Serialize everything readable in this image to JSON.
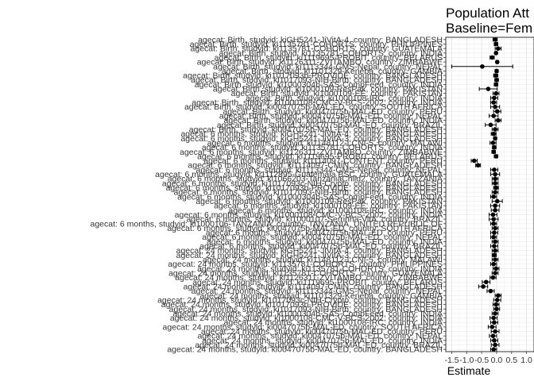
{
  "chart_data": {
    "type": "scatter",
    "title": "Population Att",
    "subtitle": "Baseline=Fem",
    "xlabel": "Estimate",
    "ylabel": "",
    "xlim": [
      -1.7,
      1.25
    ],
    "xticks": [
      -1.5,
      -1.0,
      -0.5,
      0.0,
      0.5,
      1.0
    ],
    "xtick_labels": [
      "-1.5",
      "-1.0",
      "-0.5",
      "0.0",
      "0.5",
      "1.0"
    ],
    "grid": true,
    "series": [
      {
        "points": [
          {
            "label": "agecat: Birth, studyid: kiGH5241-JiVitA-4, country: BANGLADESH",
            "est": -0.05,
            "lo": -0.12,
            "hi": 0.02
          },
          {
            "label": "agecat: Birth, studyid: ki1135781-COHORTS, country: PHILIPPINES",
            "est": -0.02,
            "lo": -0.08,
            "hi": 0.04
          },
          {
            "label": "agecat: Birth, studyid: ki1135781-COHORTS, country: GUATEMALA",
            "est": 0.05,
            "lo": -0.05,
            "hi": 0.15
          },
          {
            "label": "agecat: Birth, studyid: ki1135781-COHORTS, country: INDIA",
            "est": -0.02,
            "lo": -0.06,
            "hi": 0.02
          },
          {
            "label": "agecat: Birth, studyid: ki1119695-PROBIT, country: BELARUS",
            "est": -0.15,
            "lo": -0.22,
            "hi": -0.08
          },
          {
            "label": "agecat: Birth, studyid: ki1126311-ZVITAMBO, country: ZIMBABWE",
            "est": 0.02,
            "lo": -0.02,
            "hi": 0.06
          },
          {
            "label": "agecat: Birth, studyid: ki1113344-GMS-Nepal, country: NEPAL",
            "est": -0.48,
            "lo": -1.5,
            "hi": 0.54
          },
          {
            "label": "agecat: Birth, studyid: ki1101329-Keneba, country: GAMBIA",
            "est": 0.0,
            "lo": -0.05,
            "hi": 0.05
          },
          {
            "label": "agecat: Birth, studyid: ki1017093b-PROVIDE, country: BANGLADESH",
            "est": -0.03,
            "lo": -0.1,
            "hi": 0.04
          },
          {
            "label": "agecat: Birth, studyid: ki1017093-NIH-Birth, country: BANGLADESH",
            "est": 0.0,
            "lo": -0.06,
            "hi": 0.06
          },
          {
            "label": "agecat: Birth, studyid: ki1000304b-SAS-CompFeed, country: INDIA",
            "est": -0.02,
            "lo": -0.08,
            "hi": 0.04
          },
          {
            "label": "agecat: Birth, studyid: ki1000109-ResPak, country: PAKISTAN",
            "est": -0.28,
            "lo": -0.58,
            "hi": 0.02
          },
          {
            "label": "agecat: Birth, studyid: ki1000109-EE, country: PAKISTAN",
            "est": -0.02,
            "lo": -0.12,
            "hi": 0.08
          },
          {
            "label": "agecat: Birth, studyid: ki1000108-IRC, country: INDIA",
            "est": -0.08,
            "lo": -0.2,
            "hi": 0.04
          },
          {
            "label": "agecat: Birth, studyid: ki1000108-CMC-V-BCS-2002, country: INDIA",
            "est": -0.1,
            "lo": -0.2,
            "hi": 0.0
          },
          {
            "label": "agecat: Birth, studyid: ki0047075b-MAL-ED, country: SOUTH AFRICA",
            "est": -0.05,
            "lo": -0.2,
            "hi": 0.1
          },
          {
            "label": "agecat: Birth, studyid: ki0047075b-MAL-ED, country: PERU",
            "est": 0.02,
            "lo": -0.1,
            "hi": 0.14
          },
          {
            "label": "agecat: Birth, studyid: ki0047075b-MAL-ED, country: NEPAL",
            "est": -0.1,
            "lo": -0.25,
            "hi": 0.05
          },
          {
            "label": "agecat: Birth, studyid: ki0047075b-MAL-ED, country: INDIA",
            "est": 0.05,
            "lo": -0.05,
            "hi": 0.15
          },
          {
            "label": "agecat: Birth, studyid: ki0047075b-MAL-ED, country: BRAZIL",
            "est": -0.2,
            "lo": -0.38,
            "hi": -0.02
          },
          {
            "label": "agecat: Birth, studyid: ki0047075b-MAL-ED, country: BANGLADESH",
            "est": -0.05,
            "lo": -0.15,
            "hi": 0.05
          },
          {
            "label": "agecat: 6 months, studyid: kiGH5241-JiVitA-4, country: BANGLADESH",
            "est": -0.1,
            "lo": -0.18,
            "hi": -0.02
          },
          {
            "label": "agecat: 6 months, studyid: kiGH5241-JiVitA-3, country: BANGLADESH",
            "est": -0.05,
            "lo": -0.1,
            "hi": 0.0
          },
          {
            "label": "agecat: 6 months, studyid: ki1148112-LCNI-5, country: MALAWI",
            "est": -0.12,
            "lo": -0.22,
            "hi": -0.02
          },
          {
            "label": "agecat: 6 months, studyid: ki1135781-COHORTS, country: INDIA",
            "est": -0.08,
            "lo": -0.14,
            "hi": -0.02
          },
          {
            "label": "agecat: 6 months, studyid: ki1126311-ZVITAMBO, country: ZIMBABWE",
            "est": -0.1,
            "lo": -0.16,
            "hi": -0.04
          },
          {
            "label": "agecat: 6 months, studyid: ki1119695-PROBIT, country: BELARUS",
            "est": -0.02,
            "lo": -0.08,
            "hi": 0.04
          },
          {
            "label": "agecat: 6 months, studyid: ki1114097-CONTENT, country: PERU",
            "est": -0.75,
            "lo": -0.85,
            "hi": -0.65
          },
          {
            "label": "agecat: 6 months, studyid: ki1114097-CMIN, country: BANGLADESH",
            "est": -0.62,
            "lo": -0.7,
            "hi": -0.54
          },
          {
            "label": "agecat: 6 months, studyid: ki1113344-GMS-Nepal, country: NEPAL",
            "est": -0.08,
            "lo": -0.2,
            "hi": 0.04
          },
          {
            "label": "agecat: 6 months, studyid: ki1112895-Guatemala BSC, country: GUATEMALA",
            "est": -0.05,
            "lo": -0.2,
            "hi": 0.1
          },
          {
            "label": "agecat: 6 months, studyid: ki1066203-TanzaniaChild2, country: TANZANIA",
            "est": -0.05,
            "lo": -0.15,
            "hi": 0.05
          },
          {
            "label": "agecat: 6 months, studyid: ki1017093c-NIH-Crypto, country: BANGLADESH",
            "est": -0.05,
            "lo": -0.15,
            "hi": 0.05
          },
          {
            "label": "agecat: 6 months, studyid: ki1017093b-PROVIDE, country: BANGLADESH",
            "est": -0.02,
            "lo": -0.1,
            "hi": 0.06
          },
          {
            "label": "agecat: 6 months, studyid: ki1017093-NIH-Birth, country: BANGLADESH",
            "est": -0.05,
            "lo": -0.15,
            "hi": 0.05
          },
          {
            "label": "agecat: 6 months, studyid: ki1000304b-SAS-CompFeed, country: INDIA",
            "est": -0.1,
            "lo": -0.2,
            "hi": 0.0
          },
          {
            "label": "agecat: 6 months, studyid: ki1000109-ResPak, country: PAKISTAN",
            "est": 0.02,
            "lo": -0.15,
            "hi": 0.19
          },
          {
            "label": "agecat: 6 months, studyid: ki1000109-EE, country: PAKISTAN",
            "est": -0.05,
            "lo": -0.2,
            "hi": 0.1
          },
          {
            "label": "agecat: 6 months, studyid: ki1000108-IRC, country: INDIA",
            "est": -0.05,
            "lo": -0.18,
            "hi": 0.08
          },
          {
            "label": "agecat: 6 months, studyid: ki1000108-CMC-V-BCS-2002, country: INDIA",
            "est": -0.12,
            "lo": -0.25,
            "hi": 0.01
          },
          {
            "label": "agecat: 6 months, studyid: ki1000107-Serrinha-VitA, country: BRAZIL",
            "est": -0.1,
            "lo": -0.25,
            "hi": 0.05
          },
          {
            "label": "agecat: 6 months, studyid: ki1000106-TANZANIA, country: TANZANIA, UNITED REPUBLIC OF",
            "est": -0.1,
            "lo": -0.2,
            "hi": 0.0
          },
          {
            "label": "agecat: 6 months, studyid: ki0047075b-MAL-ED, country: SOUTH AFRICA",
            "est": -0.05,
            "lo": -0.15,
            "hi": 0.05
          },
          {
            "label": "agecat: 6 months, studyid: ki0047075b-MAL-ED, country: PERU",
            "est": -0.08,
            "lo": -0.2,
            "hi": 0.04
          },
          {
            "label": "agecat: 6 months, studyid: ki0047075b-MAL-ED, country: NEPAL",
            "est": -0.1,
            "lo": -0.2,
            "hi": 0.0
          },
          {
            "label": "agecat: 6 months, studyid: ki0047075b-MAL-ED, country: INDIA",
            "est": -0.05,
            "lo": -0.15,
            "hi": 0.05
          },
          {
            "label": "agecat: 6 months, studyid: ki0047075b-MAL-ED, country: BRAZIL",
            "est": -0.08,
            "lo": -0.2,
            "hi": 0.04
          },
          {
            "label": "agecat: 24 months, studyid: kiGH5241-JiVitA-4, country: BANGLADESH",
            "est": -0.05,
            "lo": -0.15,
            "hi": 0.05
          },
          {
            "label": "agecat: 24 months, studyid: kiGH5241-JiVitA-3, country: BANGLADESH",
            "est": -0.08,
            "lo": -0.15,
            "hi": -0.01
          },
          {
            "label": "agecat: 24 months, studyid: ki1148112-LCNI-5, country: MALAWI",
            "est": -0.05,
            "lo": -0.15,
            "hi": 0.05
          },
          {
            "label": "agecat: 24 months, studyid: ki1135781-COHORTS, country: PHILIPPINES",
            "est": -0.1,
            "lo": -0.2,
            "hi": 0.0
          },
          {
            "label": "agecat: 24 months, studyid: ki1135781-COHORTS, country: INDIA",
            "est": -0.02,
            "lo": -0.12,
            "hi": 0.08
          },
          {
            "label": "agecat: 24 months, studyid: ki1135781-COHORTS, country: GUATEMALA",
            "est": -0.05,
            "lo": -0.15,
            "hi": 0.05
          },
          {
            "label": "agecat: 24 months, studyid: ki1126311-ZVITAMBO, country: ZIMBABWE",
            "est": -0.12,
            "lo": -0.22,
            "hi": -0.02
          },
          {
            "label": "agecat: 24 months, studyid: ki1119695-PROBIT, country: BELARUS",
            "est": -0.35,
            "lo": -0.48,
            "hi": -0.22
          },
          {
            "label": "agecat: 24 months, studyid: ki1114097-CMIN, country: BANGLADESH",
            "est": -0.45,
            "lo": -0.6,
            "hi": -0.3
          },
          {
            "label": "agecat: 24 months, studyid: ki1113344-GMS-Nepal, country: NEPAL",
            "est": -0.2,
            "lo": -0.32,
            "hi": -0.08
          },
          {
            "label": "agecat: 24 months, studyid: ki1101329-Keneba, country: GAMBIA",
            "est": 0.05,
            "lo": -0.05,
            "hi": 0.15
          },
          {
            "label": "agecat: 24 months, studyid: ki1017093c-NIH-Crypto, country: BANGLADESH",
            "est": 0.02,
            "lo": -0.1,
            "hi": 0.14
          },
          {
            "label": "agecat: 24 months, studyid: ki1017093b-PROVIDE, country: BANGLADESH",
            "est": -0.02,
            "lo": -0.12,
            "hi": 0.08
          },
          {
            "label": "agecat: 24 months, studyid: ki1017093-NIH-Birth, country: BANGLADESH",
            "est": 0.0,
            "lo": -0.1,
            "hi": 0.1
          },
          {
            "label": "agecat: 24 months, studyid: ki1000304b-SAS-CompFeed, country: INDIA",
            "est": -0.05,
            "lo": -0.15,
            "hi": 0.05
          },
          {
            "label": "agecat: 24 months, studyid: ki1000108-CMC-V-BCS-2002, country: INDIA",
            "est": -0.1,
            "lo": -0.22,
            "hi": 0.02
          },
          {
            "label": "agecat: 24 months, studyid: ki1000108-IRC, country: INDIA",
            "est": -0.08,
            "lo": -0.2,
            "hi": 0.04
          },
          {
            "label": "agecat: 24 months, studyid: ki0047075b-MAL-ED, country: SOUTH AFRICA",
            "est": -0.15,
            "lo": -0.28,
            "hi": -0.02
          },
          {
            "label": "agecat: 24 months, studyid: ki0047075b-MAL-ED, country: PERU",
            "est": -0.05,
            "lo": -0.18,
            "hi": 0.08
          },
          {
            "label": "agecat: 24 months, studyid: ki0047075b-MAL-ED, country: NEPAL",
            "est": -0.12,
            "lo": -0.24,
            "hi": 0.0
          },
          {
            "label": "agecat: 24 months, studyid: ki0047075b-MAL-ED, country: INDIA",
            "est": -0.08,
            "lo": -0.2,
            "hi": 0.04
          },
          {
            "label": "agecat: 24 months, studyid: ki0047075b-MAL-ED, country: BRAZIL",
            "est": -0.05,
            "lo": -0.18,
            "hi": 0.08
          },
          {
            "label": "agecat: 24 months, studyid: ki0047075b-MAL-ED, country: BANGLADESH",
            "est": -0.1,
            "lo": -0.2,
            "hi": 0.0
          }
        ]
      }
    ]
  }
}
